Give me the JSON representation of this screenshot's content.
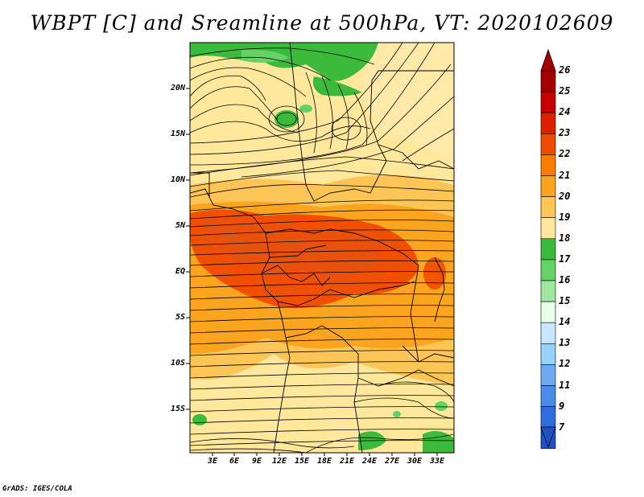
{
  "title": "WBPT [C] and Sreamline at 500hPa, VT: 2020102609",
  "lat_labels": [
    "20N",
    "15N",
    "10N",
    "5N",
    "EQ",
    "5S",
    "10S",
    "15S"
  ],
  "lon_labels": [
    "3E",
    "6E",
    "9E",
    "12E",
    "15E",
    "18E",
    "21E",
    "24E",
    "27E",
    "30E",
    "33E"
  ],
  "colorbar": {
    "labels": [
      "26",
      "25",
      "24",
      "23",
      "22",
      "21",
      "20",
      "19",
      "18",
      "17",
      "16",
      "15",
      "14",
      "13",
      "12",
      "11",
      "9",
      "7"
    ],
    "colors": [
      "#a50000",
      "#c80000",
      "#e01e00",
      "#f04b00",
      "#fa7d00",
      "#fba41e",
      "#fdc555",
      "#ffe79c",
      "#3cba3c",
      "#64d264",
      "#a0e6a0",
      "#e6ffe6",
      "#c8e6ff",
      "#96d2fa",
      "#6eaaf0",
      "#4b8ce6",
      "#2d6edc",
      "#1e50c8"
    ]
  },
  "credit": "GrADS: IGES/COLA"
}
